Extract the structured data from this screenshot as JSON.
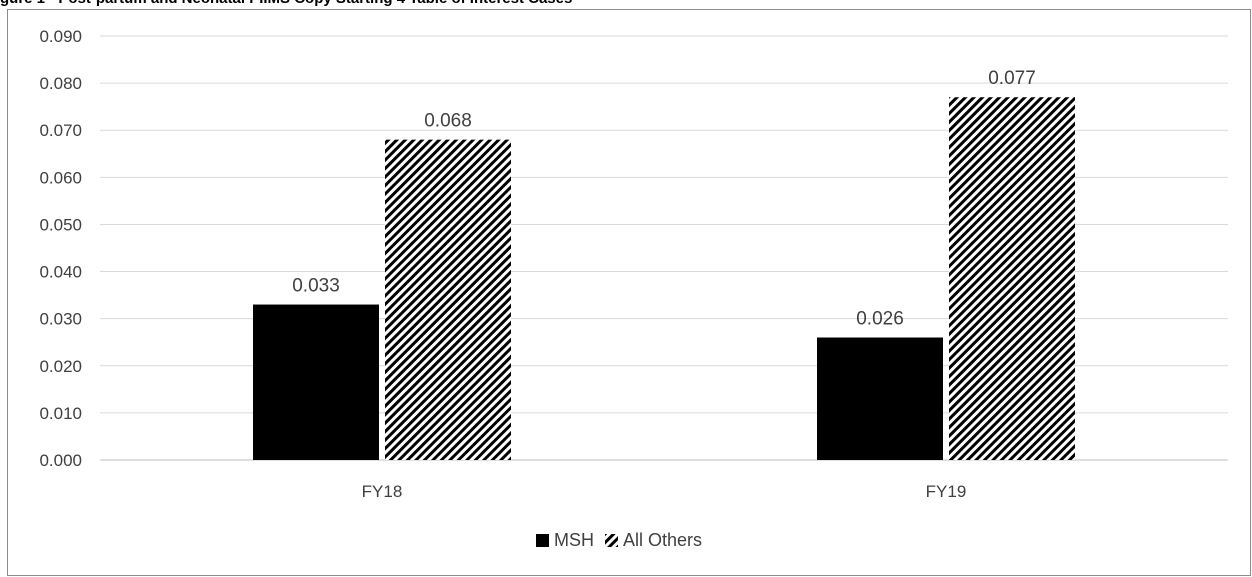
{
  "chart_data": {
    "type": "bar",
    "title": "gure 1 - Post-partum and Neonatal PIIMS Copy Starting 4 Table of Interest Cases",
    "xlabel": "",
    "ylabel": "",
    "categories": [
      "FY18",
      "FY19"
    ],
    "series": [
      {
        "name": "MSH",
        "values": [
          0.033,
          0.026
        ],
        "value_labels": [
          "0.033",
          "0.026"
        ],
        "fill": "solid",
        "color": "#000000"
      },
      {
        "name": "All Others",
        "values": [
          0.068,
          0.077
        ],
        "value_labels": [
          "0.068",
          "0.077"
        ],
        "fill": "hatched",
        "color": "#000000"
      }
    ],
    "ylim": [
      0,
      0.09
    ],
    "y_ticks": [
      "0.000",
      "0.010",
      "0.020",
      "0.030",
      "0.040",
      "0.050",
      "0.060",
      "0.070",
      "0.080",
      "0.090"
    ],
    "grid": true,
    "legend_position": "bottom-center",
    "colors": {
      "bar": "#000000",
      "grid": "#d9d9d9",
      "axis_text": "#404040",
      "frame": "#8c8c8c"
    }
  }
}
